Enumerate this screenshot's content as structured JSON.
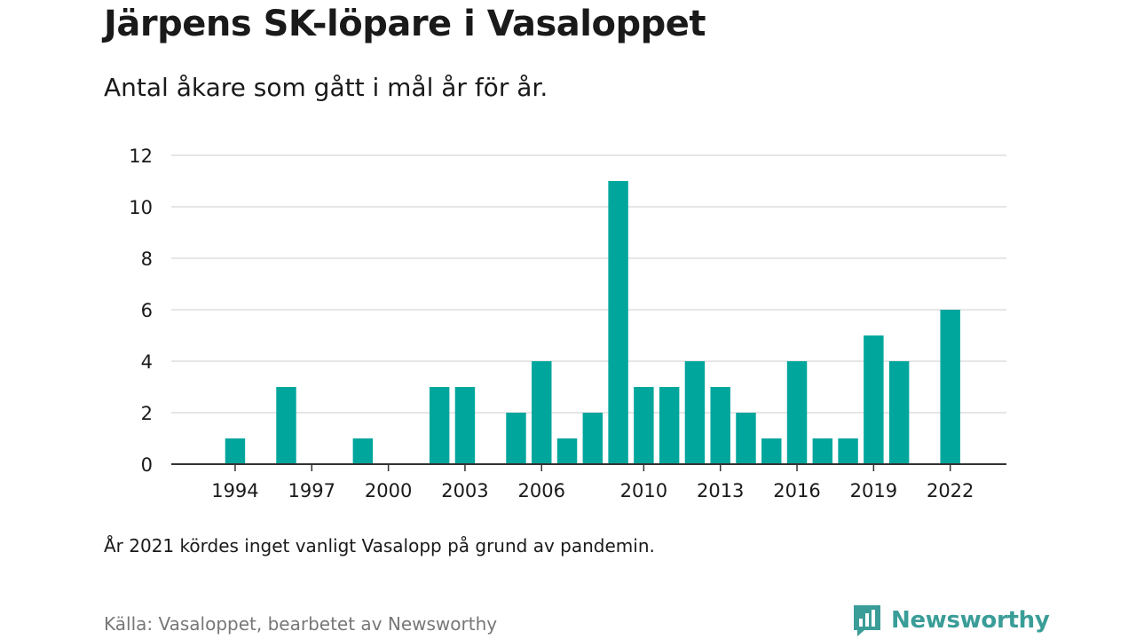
{
  "header": {
    "title": "Järpens SK-löpare i Vasaloppet",
    "subtitle": "Antal åkare som gått i mål år för år."
  },
  "footer": {
    "note": "År 2021 kördes inget vanligt Vasalopp på grund av pandemin.",
    "source": "Källa: Vasaloppet, bearbetet av Newsworthy",
    "brand": "Newsworthy",
    "brand_icon": "newsworthy-logo-icon"
  },
  "colors": {
    "bar": "#00a69c",
    "grid": "#dddddd",
    "axis": "#333333",
    "brand": "#3a9d98"
  },
  "chart_data": {
    "type": "bar",
    "title": "Järpens SK-löpare i Vasaloppet",
    "subtitle": "Antal åkare som gått i mål år för år.",
    "xlabel": "",
    "ylabel": "",
    "x": [
      1992,
      1993,
      1994,
      1995,
      1996,
      1997,
      1998,
      1999,
      2000,
      2001,
      2002,
      2003,
      2004,
      2005,
      2006,
      2007,
      2008,
      2009,
      2010,
      2011,
      2012,
      2013,
      2014,
      2015,
      2016,
      2017,
      2018,
      2019,
      2020,
      2021,
      2022
    ],
    "values": [
      0,
      0,
      1,
      0,
      3,
      0,
      0,
      1,
      0,
      0,
      3,
      3,
      0,
      2,
      4,
      1,
      2,
      11,
      3,
      3,
      4,
      3,
      2,
      1,
      4,
      1,
      1,
      5,
      4,
      0,
      6
    ],
    "xticks": [
      "1994",
      "1997",
      "2000",
      "2003",
      "2006",
      "2010",
      "2013",
      "2016",
      "2019",
      "2022"
    ],
    "yticks": [
      "0",
      "2",
      "4",
      "6",
      "8",
      "10",
      "12"
    ],
    "ylim": [
      0,
      12
    ],
    "xlim": [
      1991.5,
      2024.2
    ],
    "grid": true,
    "legend": "none"
  }
}
